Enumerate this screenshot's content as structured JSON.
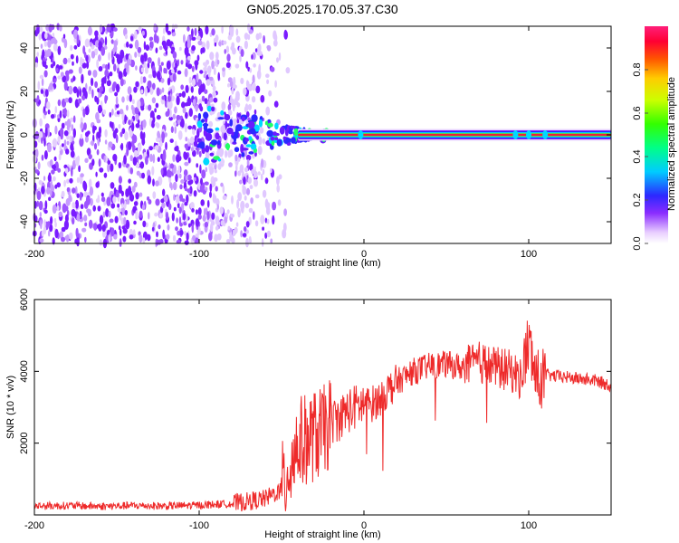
{
  "title": "GN05.2025.170.05.37.C30",
  "colors": {
    "snr_line": "#ee2a2a",
    "spectrogram_low": "#7a1cff",
    "spectrogram_band": "#e8174f",
    "frame": "#000000"
  },
  "chart_data": [
    {
      "type": "heatmap",
      "xlabel": "Height of straight line (km)",
      "ylabel": "Frequency (Hz)",
      "xlim": [
        -200,
        150
      ],
      "ylim": [
        -50,
        50
      ],
      "x_ticks": [
        "-200",
        "-100",
        "0",
        "100"
      ],
      "y_ticks": [
        "-40",
        "-20",
        "0",
        "20",
        "40"
      ],
      "colorbar": {
        "label": "Normalized spectral amplitude",
        "range": [
          0,
          1
        ],
        "ticks": [
          "0.0",
          "0.2",
          "0.4",
          "0.6",
          "0.8"
        ],
        "colormap": "rainbow (white-violet-blue-cyan-green-yellow-red-magenta)"
      },
      "features": {
        "band_center_hz": 0,
        "band_start_km": -40,
        "band_end_km": 150,
        "noise_region_km": [
          -200,
          -60
        ],
        "transition_region_km": [
          -100,
          -20
        ]
      }
    },
    {
      "type": "line",
      "xlabel": "Height of straight line (km)",
      "ylabel": "SNR (10 * v/v)",
      "xlim": [
        -200,
        150
      ],
      "ylim": [
        0,
        6000
      ],
      "x_ticks": [
        "-200",
        "-100",
        "0",
        "100"
      ],
      "y_ticks": [
        "2000",
        "4000",
        "6000"
      ],
      "series": [
        {
          "x": [
            -200,
            -180,
            -160,
            -140,
            -120,
            -100,
            -80,
            -70,
            -60,
            -50,
            -45,
            -40,
            -35,
            -30,
            -25,
            -20,
            -15,
            -10,
            -5,
            0,
            5,
            10,
            15,
            20,
            30,
            40,
            50,
            60,
            70,
            80,
            90,
            95,
            100,
            105,
            110,
            120,
            130,
            140,
            150
          ],
          "y": [
            250,
            260,
            240,
            260,
            250,
            270,
            320,
            380,
            450,
            700,
            1400,
            2000,
            2100,
            2200,
            2300,
            2600,
            2700,
            2900,
            3000,
            3100,
            3100,
            3250,
            3500,
            3700,
            4000,
            4150,
            4200,
            4100,
            4250,
            4100,
            4000,
            3800,
            4800,
            3700,
            3900,
            3850,
            3800,
            3750,
            3600
          ]
        }
      ]
    }
  ]
}
